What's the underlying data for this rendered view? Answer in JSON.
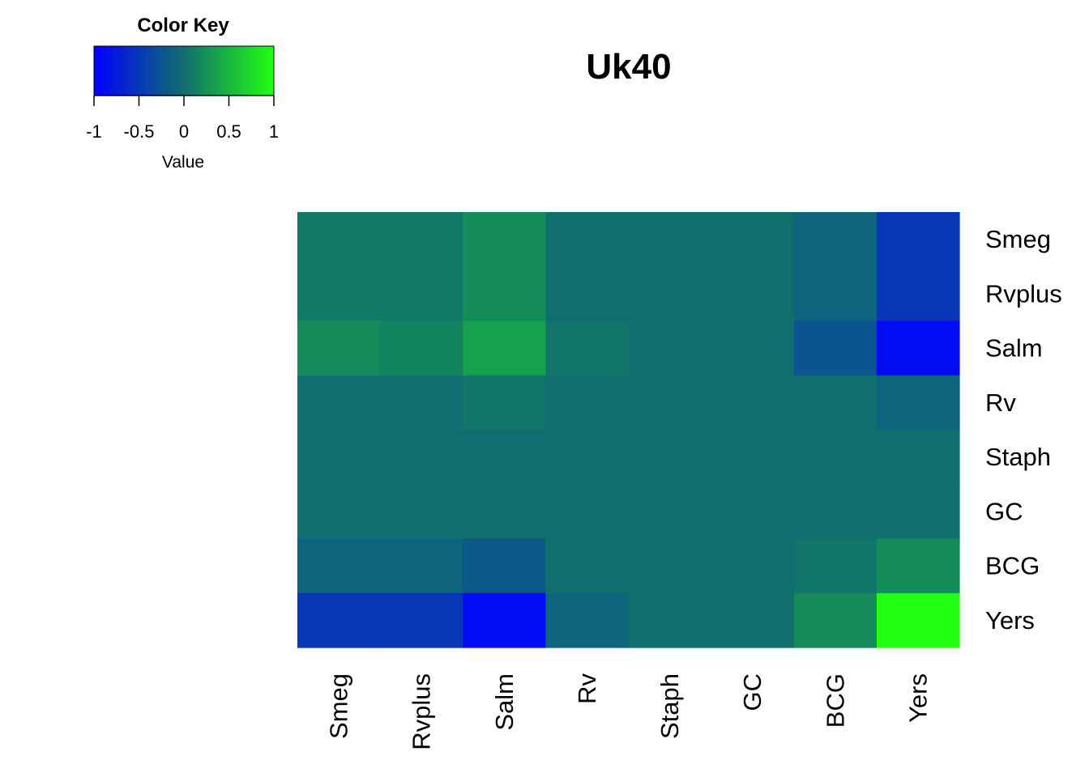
{
  "chart_data": {
    "type": "heatmap",
    "title": "Uk40",
    "row_labels": [
      "Smeg",
      "Rvplus",
      "Salm",
      "Rv",
      "Staph",
      "GC",
      "BCG",
      "Yers"
    ],
    "col_labels": [
      "Smeg",
      "Rvplus",
      "Salm",
      "Rv",
      "Staph",
      "GC",
      "BCG",
      "Yers"
    ],
    "values": [
      [
        0.08,
        0.08,
        0.2,
        0.0,
        0.0,
        0.0,
        -0.1,
        -0.5
      ],
      [
        0.08,
        0.08,
        0.2,
        0.0,
        0.0,
        0.0,
        -0.1,
        -0.5
      ],
      [
        0.2,
        0.15,
        0.35,
        0.05,
        0.0,
        0.0,
        -0.25,
        -0.9
      ],
      [
        0.0,
        0.0,
        0.05,
        0.0,
        0.0,
        0.0,
        0.0,
        -0.1
      ],
      [
        0.0,
        0.0,
        0.0,
        0.0,
        0.0,
        0.0,
        0.0,
        0.0
      ],
      [
        0.0,
        0.0,
        0.0,
        0.0,
        0.0,
        0.0,
        0.0,
        0.0
      ],
      [
        -0.1,
        -0.1,
        -0.2,
        0.0,
        0.0,
        0.0,
        0.05,
        0.2
      ],
      [
        -0.5,
        -0.5,
        -0.9,
        -0.1,
        0.0,
        0.0,
        0.2,
        1.0
      ]
    ],
    "color_scale": {
      "low": "#0000ff",
      "mid": "#106e6e",
      "high": "#22ff11",
      "domain": [
        -1,
        1
      ]
    },
    "legend": {
      "title": "Color Key",
      "label": "Value",
      "ticks": [
        "-1",
        "-0.5",
        "0",
        "0.5",
        "1"
      ],
      "tick_values": [
        -1,
        -0.5,
        0,
        0.5,
        1
      ]
    }
  }
}
